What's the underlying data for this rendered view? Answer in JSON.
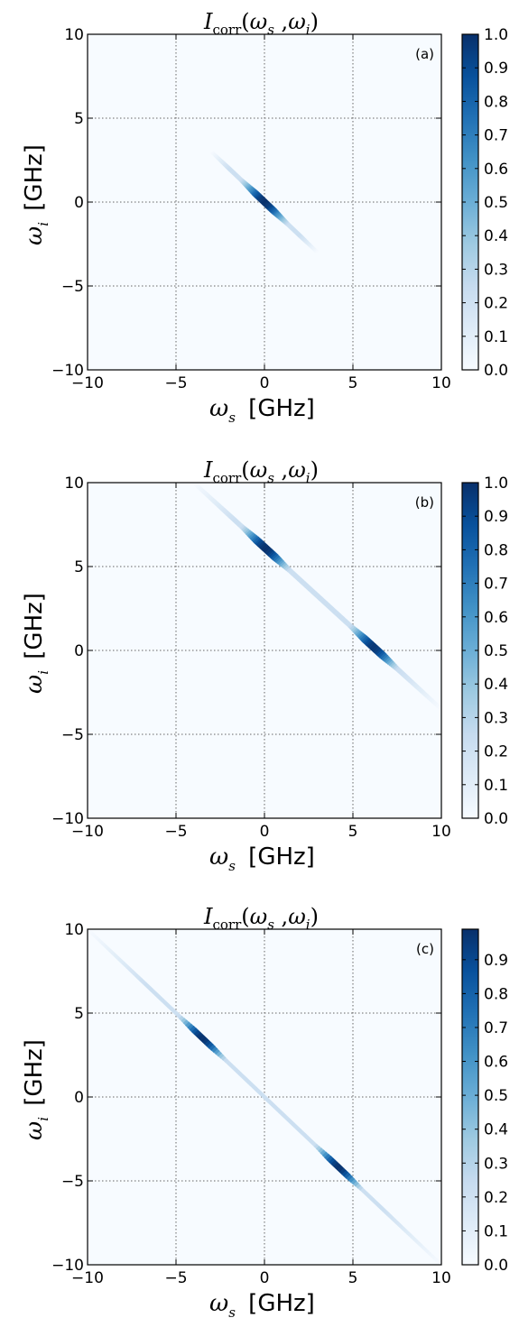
{
  "figure": {
    "title_main": "I",
    "title_sub": "corr",
    "title_args": [
      "(",
      "ω",
      "s",
      " ,",
      "ω",
      "i",
      ")"
    ],
    "xlabel_var": "ω",
    "xlabel_sub": "s",
    "xlabel_unit": "[GHz]",
    "ylabel_var": "ω",
    "ylabel_sub": "i",
    "ylabel_unit": "[GHz]"
  },
  "chart_data": [
    {
      "type": "heatmap",
      "panel_label": "(a)",
      "title": "I_corr(ω_s, ω_i)",
      "xlabel": "ω_s [GHz]",
      "ylabel": "ω_i [GHz]",
      "xlim": [
        -10,
        10
      ],
      "ylim": [
        -10,
        10
      ],
      "xticks": [
        "−10",
        "−5",
        "0",
        "5",
        "10"
      ],
      "yticks": [
        "−10",
        "−5",
        "0",
        "5",
        "10"
      ],
      "grid": true,
      "colormap": "Blues",
      "colorbar": {
        "min": 0.0,
        "max": 1.0,
        "ticks": [
          "0.0",
          "0.1",
          "0.2",
          "0.3",
          "0.4",
          "0.5",
          "0.6",
          "0.7",
          "0.8",
          "0.9",
          "1.0"
        ]
      },
      "features": [
        {
          "kind": "anti-diagonal streak",
          "x": [
            -3,
            3
          ],
          "y": [
            3,
            -3
          ],
          "peaks": [
            {
              "x": 0,
              "y": 0,
              "value": 1.0
            }
          ],
          "width": 0.4
        }
      ]
    },
    {
      "type": "heatmap",
      "panel_label": "(b)",
      "title": "I_corr(ω_s, ω_i)",
      "xlabel": "ω_s [GHz]",
      "ylabel": "ω_i [GHz]",
      "xlim": [
        -10,
        10
      ],
      "ylim": [
        -10,
        10
      ],
      "xticks": [
        "−10",
        "−5",
        "0",
        "5",
        "10"
      ],
      "yticks": [
        "−10",
        "−5",
        "0",
        "5",
        "10"
      ],
      "grid": true,
      "colormap": "Blues",
      "colorbar": {
        "min": 0.0,
        "max": 1.0,
        "ticks": [
          "0.0",
          "0.1",
          "0.2",
          "0.3",
          "0.4",
          "0.5",
          "0.6",
          "0.7",
          "0.8",
          "0.9",
          "1.0"
        ]
      },
      "features": [
        {
          "kind": "anti-diagonal streak",
          "x": [
            -4,
            10
          ],
          "y": [
            10,
            -3.5
          ],
          "peaks": [
            {
              "x": 0,
              "y": 6,
              "value": 1.0
            },
            {
              "x": 6,
              "y": 0,
              "value": 1.0
            }
          ],
          "width": 0.45
        }
      ]
    },
    {
      "type": "heatmap",
      "panel_label": "(c)",
      "title": "I_corr(ω_s, ω_i)",
      "xlabel": "ω_s [GHz]",
      "ylabel": "ω_i [GHz]",
      "xlim": [
        -10,
        10
      ],
      "ylim": [
        -10,
        10
      ],
      "xticks": [
        "−10",
        "−5",
        "0",
        "5",
        "10"
      ],
      "yticks": [
        "−10",
        "−5",
        "0",
        "5",
        "10"
      ],
      "grid": true,
      "colormap": "Blues",
      "colorbar": {
        "min": 0.0,
        "max": 0.99,
        "ticks": [
          "0.0",
          "0.1",
          "0.2",
          "0.3",
          "0.4",
          "0.5",
          "0.6",
          "0.7",
          "0.8",
          "0.9"
        ]
      },
      "features": [
        {
          "kind": "anti-diagonal streak",
          "x": [
            -10,
            10
          ],
          "y": [
            10,
            -10
          ],
          "peaks": [
            {
              "x": -3.5,
              "y": 3.5,
              "value": 0.99
            },
            {
              "x": 4.2,
              "y": -4.2,
              "value": 0.99
            }
          ],
          "width": 0.35
        }
      ]
    }
  ]
}
